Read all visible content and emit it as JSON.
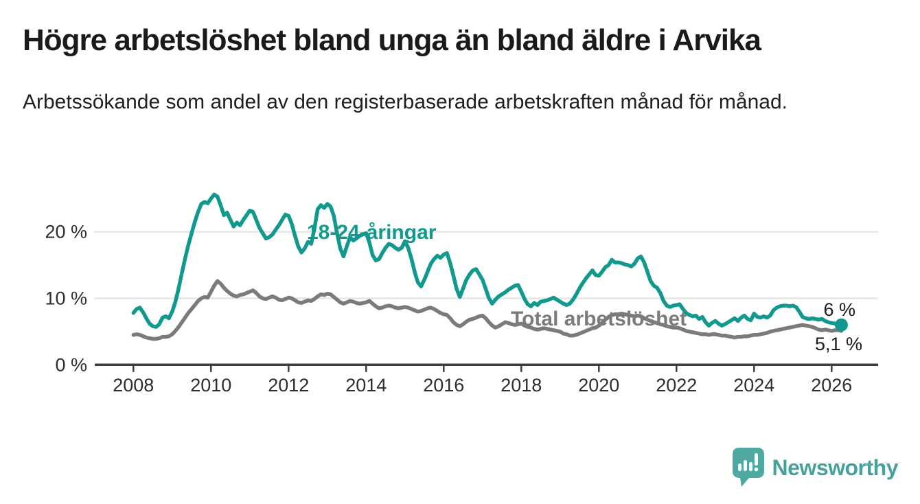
{
  "header": {
    "title": "Högre arbetslöshet bland unga än bland äldre i Arvika",
    "subtitle": "Arbetssökande som andel av den registerbaserade arbetskraften månad för månad."
  },
  "chart_data": {
    "type": "line",
    "title": "Högre arbetslöshet bland unga än bland äldre i Arvika",
    "subtitle": "Arbetssökande som andel av den registerbaserade arbetskraften månad för månad.",
    "x_unit": "month",
    "start_year": 2008,
    "points_per_year": 12,
    "x_ticks": [
      2008,
      2010,
      2012,
      2014,
      2016,
      2018,
      2020,
      2022,
      2024,
      2026
    ],
    "y_ticks": [
      {
        "value": 0,
        "label": "0 %"
      },
      {
        "value": 10,
        "label": "10 %"
      },
      {
        "value": 20,
        "label": "20 %"
      }
    ],
    "ylim": [
      0,
      27
    ],
    "grid": "horizontal",
    "legend_position": "inline-labels",
    "series": [
      {
        "name": "Total arbetslöshet",
        "color": "#7b7b7b",
        "values": [
          4.5,
          4.6,
          4.5,
          4.3,
          4.1,
          4.0,
          3.9,
          3.9,
          4.0,
          4.2,
          4.2,
          4.3,
          4.6,
          5.1,
          5.7,
          6.4,
          7.1,
          7.8,
          8.4,
          9.0,
          9.6,
          10.0,
          10.2,
          10.1,
          11.0,
          11.9,
          12.6,
          12.2,
          11.6,
          11.1,
          10.7,
          10.4,
          10.3,
          10.5,
          10.6,
          10.8,
          11.0,
          11.2,
          10.8,
          10.3,
          10.0,
          9.9,
          10.1,
          10.3,
          10.1,
          9.8,
          9.7,
          9.9,
          10.1,
          10.0,
          9.7,
          9.4,
          9.3,
          9.5,
          9.7,
          9.6,
          9.9,
          10.3,
          10.6,
          10.5,
          10.7,
          10.6,
          10.2,
          9.8,
          9.4,
          9.2,
          9.4,
          9.6,
          9.5,
          9.3,
          9.2,
          9.3,
          9.4,
          9.6,
          9.2,
          8.8,
          8.5,
          8.6,
          8.8,
          8.9,
          8.8,
          8.6,
          8.5,
          8.6,
          8.7,
          8.6,
          8.4,
          8.2,
          8.0,
          8.1,
          8.3,
          8.5,
          8.6,
          8.4,
          8.1,
          7.8,
          7.6,
          7.5,
          7.0,
          6.4,
          6.0,
          5.8,
          6.1,
          6.5,
          6.8,
          6.9,
          7.1,
          7.3,
          7.4,
          7.0,
          6.4,
          5.9,
          5.6,
          5.8,
          6.1,
          6.4,
          6.3,
          6.1,
          6.0,
          6.1,
          6.2,
          5.9,
          5.7,
          5.6,
          5.4,
          5.3,
          5.4,
          5.5,
          5.4,
          5.3,
          5.2,
          5.1,
          5.0,
          4.7,
          4.6,
          4.4,
          4.4,
          4.5,
          4.7,
          4.9,
          5.1,
          5.3,
          5.5,
          5.6,
          5.9,
          6.3,
          6.8,
          7.2,
          7.5,
          7.6,
          7.6,
          7.7,
          7.6,
          7.5,
          7.4,
          7.3,
          7.4,
          7.3,
          7.0,
          6.8,
          6.6,
          6.4,
          6.3,
          6.1,
          6.0,
          5.8,
          5.7,
          5.6,
          5.6,
          5.5,
          5.3,
          5.1,
          5.0,
          4.9,
          4.8,
          4.7,
          4.6,
          4.6,
          4.5,
          4.6,
          4.6,
          4.5,
          4.4,
          4.4,
          4.3,
          4.2,
          4.1,
          4.2,
          4.2,
          4.3,
          4.3,
          4.4,
          4.5,
          4.5,
          4.6,
          4.7,
          4.8,
          5.0,
          5.1,
          5.2,
          5.3,
          5.4,
          5.5,
          5.6,
          5.7,
          5.8,
          5.9,
          6.0,
          5.9,
          5.8,
          5.7,
          5.5,
          5.3,
          5.2,
          5.3,
          5.2,
          5.1,
          5.2,
          5.2,
          5.1
        ]
      },
      {
        "name": "18-24-åringar",
        "color": "#10998c",
        "values": [
          7.8,
          8.4,
          8.6,
          7.9,
          7.0,
          6.2,
          5.8,
          5.7,
          6.1,
          7.1,
          7.3,
          7.0,
          8.0,
          9.5,
          11.5,
          13.8,
          16.0,
          18.0,
          19.8,
          21.5,
          23.0,
          24.2,
          24.5,
          24.3,
          25.0,
          25.6,
          25.3,
          24.0,
          22.5,
          22.9,
          21.8,
          20.8,
          21.4,
          21.0,
          21.8,
          22.5,
          23.2,
          23.0,
          21.8,
          20.6,
          19.8,
          19.0,
          19.2,
          19.6,
          20.3,
          21.0,
          21.8,
          22.6,
          22.4,
          21.2,
          19.4,
          17.8,
          16.9,
          17.5,
          18.5,
          18.2,
          20.5,
          23.4,
          24.0,
          23.6,
          24.2,
          23.8,
          22.4,
          19.8,
          17.5,
          16.3,
          17.8,
          19.2,
          18.7,
          19.0,
          19.4,
          19.6,
          19.8,
          18.4,
          16.5,
          15.7,
          15.9,
          16.8,
          17.6,
          18.2,
          18.0,
          17.6,
          17.3,
          17.6,
          18.6,
          17.6,
          16.0,
          14.0,
          12.4,
          11.8,
          12.8,
          14.0,
          15.2,
          15.9,
          16.4,
          16.1,
          16.6,
          16.8,
          15.3,
          13.4,
          11.4,
          10.2,
          11.5,
          12.8,
          13.6,
          14.2,
          14.4,
          13.6,
          12.8,
          11.4,
          10.0,
          9.2,
          9.8,
          10.3,
          10.6,
          10.9,
          11.3,
          11.6,
          11.9,
          12.0,
          11.0,
          9.9,
          9.1,
          8.8,
          9.3,
          9.0,
          9.5,
          9.6,
          9.7,
          9.9,
          10.1,
          9.8,
          9.5,
          9.2,
          9.0,
          9.2,
          9.8,
          10.6,
          11.5,
          12.3,
          13.0,
          13.6,
          14.2,
          13.5,
          13.4,
          14.0,
          14.7,
          15.0,
          15.8,
          15.4,
          15.4,
          15.3,
          15.1,
          15.0,
          14.8,
          15.2,
          16.0,
          16.3,
          15.4,
          14.0,
          12.6,
          11.9,
          11.6,
          10.8,
          9.6,
          8.9,
          8.7,
          8.9,
          9.0,
          9.1,
          8.4,
          7.8,
          7.5,
          7.3,
          7.4,
          6.9,
          7.2,
          6.4,
          5.9,
          6.3,
          6.6,
          6.2,
          5.9,
          6.1,
          6.4,
          6.7,
          7.0,
          6.6,
          7.1,
          7.4,
          6.9,
          6.7,
          7.7,
          7.2,
          7.1,
          7.3,
          7.1,
          7.4,
          8.2,
          8.6,
          8.8,
          8.9,
          8.9,
          8.8,
          8.9,
          8.7,
          8.0,
          7.2,
          7.0,
          6.9,
          7.0,
          6.9,
          6.8,
          6.9,
          6.6,
          6.4,
          6.3,
          6.2,
          6.1,
          6.0
        ]
      }
    ],
    "series_labels": {
      "youth": "18-24-åringar",
      "total": "Total arbetslöshet"
    },
    "end_labels": {
      "youth": "6 %",
      "total": "5,1 %"
    }
  },
  "footer": {
    "brand": "Newsworthy"
  },
  "colors": {
    "accent_teal": "#10998c",
    "neutral_gray": "#7b7b7b",
    "logo_teal": "#4fa8a2",
    "logo_text_teal": "#46a29c",
    "grid_gray": "#e1e1e1",
    "axis_dark": "#3d3d3d",
    "text_dark": "#1a1a1a"
  }
}
